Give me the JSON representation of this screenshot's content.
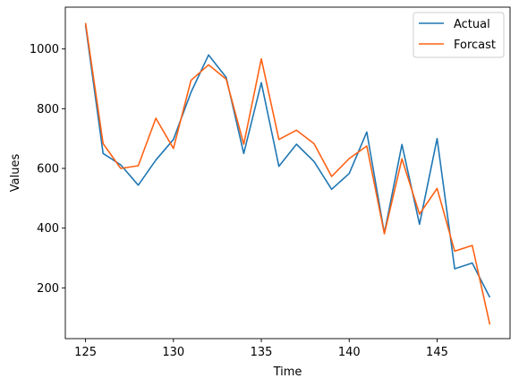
{
  "chart_data": {
    "type": "line",
    "title": "",
    "xlabel": "Time",
    "ylabel": "Values",
    "xlim": [
      123.85,
      149.15
    ],
    "ylim": [
      30,
      1140
    ],
    "xticks": [
      125,
      130,
      135,
      140,
      145
    ],
    "yticks": [
      200,
      400,
      600,
      800,
      1000
    ],
    "grid": false,
    "legend_position": "top-right",
    "x": [
      125,
      126,
      127,
      128,
      129,
      130,
      131,
      132,
      133,
      134,
      135,
      136,
      137,
      138,
      139,
      140,
      141,
      142,
      143,
      144,
      145,
      146,
      147,
      148
    ],
    "series": [
      {
        "name": "Actual",
        "color": "#1f77b4",
        "values": [
          1080,
          650,
          612,
          544,
          628,
          697,
          855,
          980,
          905,
          650,
          887,
          607,
          681,
          623,
          530,
          583,
          722,
          383,
          680,
          413,
          700,
          264,
          283,
          168
        ]
      },
      {
        "name": "Forcast",
        "color": "#ff6214",
        "values": [
          1087,
          683,
          600,
          609,
          768,
          667,
          895,
          947,
          899,
          681,
          967,
          697,
          728,
          683,
          573,
          633,
          675,
          381,
          632,
          447,
          533,
          323,
          342,
          77
        ]
      }
    ]
  }
}
